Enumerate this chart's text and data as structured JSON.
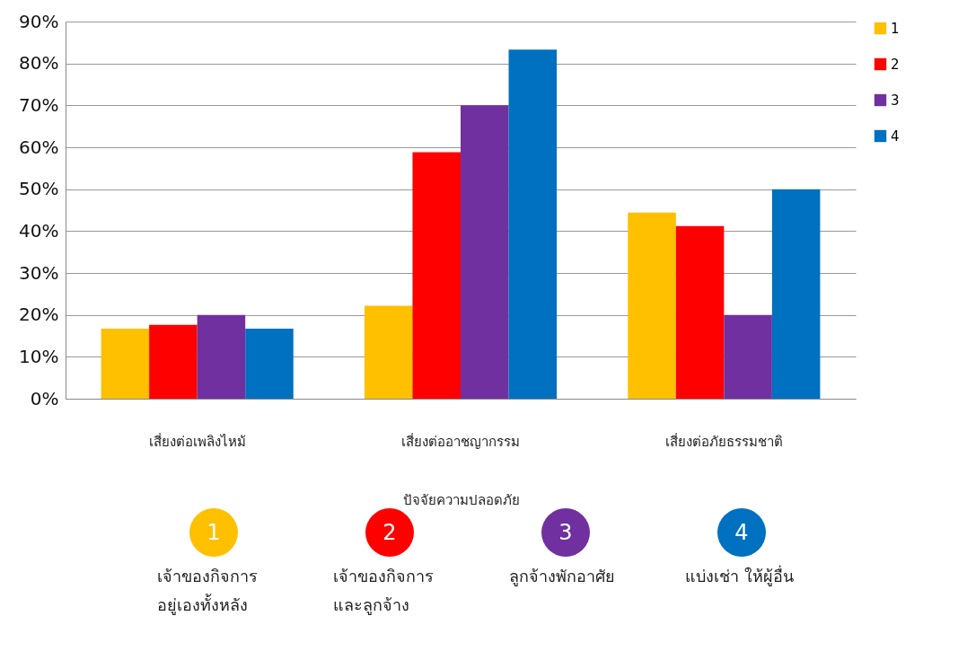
{
  "chart_data": {
    "type": "bar",
    "xlabel": "ปัจจัยความปลอดภัย",
    "categories": [
      "เสี่ยงต่อเพลิงไหม้",
      "เสี่ยงต่ออาชญากรรม",
      "เสี่ยงต่อภัยธรรมชาติ"
    ],
    "series": [
      {
        "name": "1",
        "color": "#ffc000",
        "values": [
          16.7,
          22.2,
          44.4
        ]
      },
      {
        "name": "2",
        "color": "#ff0000",
        "values": [
          17.6,
          58.8,
          41.2
        ]
      },
      {
        "name": "3",
        "color": "#7030a0",
        "values": [
          20,
          70,
          20
        ]
      },
      {
        "name": "4",
        "color": "#0070c0",
        "values": [
          16.7,
          83.3,
          50
        ]
      }
    ],
    "ylim": [
      0,
      90
    ],
    "yticks": [
      {
        "value": 0,
        "label": "0%"
      },
      {
        "value": 10,
        "label": "10%"
      },
      {
        "value": 20,
        "label": "20%"
      },
      {
        "value": 30,
        "label": "30%"
      },
      {
        "value": 40,
        "label": "40%"
      },
      {
        "value": 50,
        "label": "50%"
      },
      {
        "value": 60,
        "label": "60%"
      },
      {
        "value": 70,
        "label": "70%"
      },
      {
        "value": 80,
        "label": "80%"
      },
      {
        "value": 90,
        "label": "90%"
      }
    ],
    "grid": "y",
    "legend": "right",
    "annotations": [
      "เจ้าของกิจการ\nอยู่เองทั้งหลัง",
      "เจ้าของกิจการ\nและลูกจ้าง",
      "ลูกจ้างพักอาศัย",
      "แบ่งเช่า ให้ผู้อื่น"
    ]
  }
}
